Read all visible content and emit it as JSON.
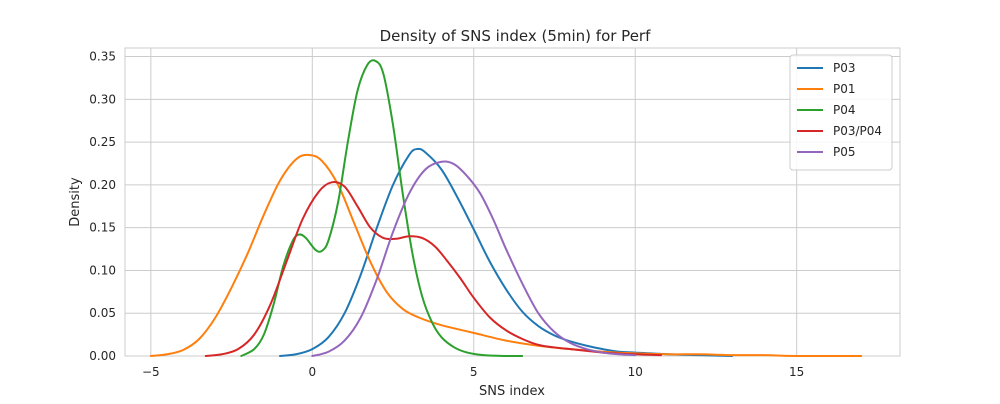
{
  "chart_data": {
    "type": "line",
    "title": "Density of SNS index (5min) for Perf",
    "xlabel": "SNS index",
    "ylabel": "Density",
    "xlim": [
      -5.8,
      18.2
    ],
    "ylim": [
      0,
      0.36
    ],
    "xticks": [
      -5,
      0,
      5,
      10,
      15
    ],
    "xtick_labels": [
      "−5",
      "0",
      "5",
      "10",
      "15"
    ],
    "yticks": [
      0.0,
      0.05,
      0.1,
      0.15,
      0.2,
      0.25,
      0.3,
      0.35
    ],
    "ytick_labels": [
      "0.00",
      "0.05",
      "0.10",
      "0.15",
      "0.20",
      "0.25",
      "0.30",
      "0.35"
    ],
    "grid": true,
    "legend_position": "top-right",
    "series": [
      {
        "name": "P03",
        "color": "#1f77b4",
        "points": [
          [
            -1.0,
            0.0
          ],
          [
            -0.5,
            0.002
          ],
          [
            0.0,
            0.008
          ],
          [
            0.5,
            0.022
          ],
          [
            1.0,
            0.05
          ],
          [
            1.5,
            0.095
          ],
          [
            2.0,
            0.15
          ],
          [
            2.5,
            0.2
          ],
          [
            3.0,
            0.235
          ],
          [
            3.25,
            0.242
          ],
          [
            3.5,
            0.238
          ],
          [
            4.0,
            0.218
          ],
          [
            4.5,
            0.185
          ],
          [
            5.0,
            0.148
          ],
          [
            5.5,
            0.11
          ],
          [
            6.0,
            0.078
          ],
          [
            6.5,
            0.052
          ],
          [
            7.0,
            0.035
          ],
          [
            7.5,
            0.024
          ],
          [
            8.0,
            0.017
          ],
          [
            8.5,
            0.012
          ],
          [
            9.0,
            0.008
          ],
          [
            9.5,
            0.005
          ],
          [
            10.0,
            0.004
          ],
          [
            11.0,
            0.002
          ],
          [
            12.0,
            0.001
          ],
          [
            13.0,
            0.0
          ]
        ]
      },
      {
        "name": "P01",
        "color": "#ff7f0e",
        "points": [
          [
            -5.0,
            0.0
          ],
          [
            -4.5,
            0.002
          ],
          [
            -4.0,
            0.007
          ],
          [
            -3.5,
            0.02
          ],
          [
            -3.0,
            0.045
          ],
          [
            -2.5,
            0.08
          ],
          [
            -2.0,
            0.12
          ],
          [
            -1.5,
            0.165
          ],
          [
            -1.0,
            0.205
          ],
          [
            -0.5,
            0.23
          ],
          [
            -0.1,
            0.235
          ],
          [
            0.3,
            0.228
          ],
          [
            0.8,
            0.2
          ],
          [
            1.3,
            0.155
          ],
          [
            1.8,
            0.11
          ],
          [
            2.3,
            0.075
          ],
          [
            2.8,
            0.055
          ],
          [
            3.3,
            0.045
          ],
          [
            4.0,
            0.036
          ],
          [
            5.0,
            0.027
          ],
          [
            6.0,
            0.018
          ],
          [
            7.0,
            0.012
          ],
          [
            8.0,
            0.008
          ],
          [
            9.0,
            0.005
          ],
          [
            10.0,
            0.003
          ],
          [
            11.0,
            0.002
          ],
          [
            12.0,
            0.002
          ],
          [
            13.0,
            0.001
          ],
          [
            14.0,
            0.001
          ],
          [
            15.0,
            0.0
          ],
          [
            17.0,
            0.0
          ]
        ]
      },
      {
        "name": "P04",
        "color": "#2ca02c",
        "points": [
          [
            -2.2,
            0.0
          ],
          [
            -1.8,
            0.008
          ],
          [
            -1.5,
            0.025
          ],
          [
            -1.2,
            0.06
          ],
          [
            -0.9,
            0.105
          ],
          [
            -0.6,
            0.135
          ],
          [
            -0.4,
            0.142
          ],
          [
            -0.2,
            0.138
          ],
          [
            0.1,
            0.124
          ],
          [
            0.3,
            0.123
          ],
          [
            0.5,
            0.135
          ],
          [
            0.8,
            0.18
          ],
          [
            1.1,
            0.25
          ],
          [
            1.4,
            0.31
          ],
          [
            1.7,
            0.34
          ],
          [
            1.95,
            0.345
          ],
          [
            2.2,
            0.33
          ],
          [
            2.5,
            0.27
          ],
          [
            2.8,
            0.19
          ],
          [
            3.1,
            0.12
          ],
          [
            3.4,
            0.07
          ],
          [
            3.7,
            0.04
          ],
          [
            4.0,
            0.022
          ],
          [
            4.4,
            0.01
          ],
          [
            4.8,
            0.004
          ],
          [
            5.3,
            0.001
          ],
          [
            6.0,
            0.0
          ],
          [
            6.5,
            0.0
          ]
        ]
      },
      {
        "name": "P03/P04",
        "color": "#d62728",
        "points": [
          [
            -3.3,
            0.0
          ],
          [
            -2.8,
            0.002
          ],
          [
            -2.3,
            0.008
          ],
          [
            -1.8,
            0.025
          ],
          [
            -1.3,
            0.06
          ],
          [
            -0.8,
            0.11
          ],
          [
            -0.3,
            0.16
          ],
          [
            0.2,
            0.192
          ],
          [
            0.6,
            0.203
          ],
          [
            1.0,
            0.198
          ],
          [
            1.4,
            0.175
          ],
          [
            1.8,
            0.15
          ],
          [
            2.2,
            0.138
          ],
          [
            2.6,
            0.137
          ],
          [
            3.0,
            0.14
          ],
          [
            3.4,
            0.138
          ],
          [
            3.8,
            0.128
          ],
          [
            4.2,
            0.11
          ],
          [
            4.6,
            0.09
          ],
          [
            5.0,
            0.068
          ],
          [
            5.5,
            0.045
          ],
          [
            6.0,
            0.03
          ],
          [
            6.5,
            0.02
          ],
          [
            7.0,
            0.013
          ],
          [
            7.5,
            0.01
          ],
          [
            8.0,
            0.008
          ],
          [
            8.5,
            0.006
          ],
          [
            9.0,
            0.004
          ],
          [
            10.0,
            0.002
          ],
          [
            10.8,
            0.001
          ]
        ]
      },
      {
        "name": "P05",
        "color": "#9467bd",
        "points": [
          [
            0.0,
            0.0
          ],
          [
            0.5,
            0.005
          ],
          [
            1.0,
            0.018
          ],
          [
            1.5,
            0.045
          ],
          [
            2.0,
            0.09
          ],
          [
            2.5,
            0.145
          ],
          [
            3.0,
            0.19
          ],
          [
            3.5,
            0.218
          ],
          [
            4.0,
            0.227
          ],
          [
            4.4,
            0.224
          ],
          [
            4.8,
            0.21
          ],
          [
            5.2,
            0.19
          ],
          [
            5.6,
            0.16
          ],
          [
            6.0,
            0.125
          ],
          [
            6.5,
            0.085
          ],
          [
            7.0,
            0.05
          ],
          [
            7.5,
            0.028
          ],
          [
            8.0,
            0.015
          ],
          [
            8.5,
            0.008
          ],
          [
            9.0,
            0.004
          ],
          [
            9.5,
            0.002
          ],
          [
            10.0,
            0.001
          ]
        ]
      }
    ]
  }
}
